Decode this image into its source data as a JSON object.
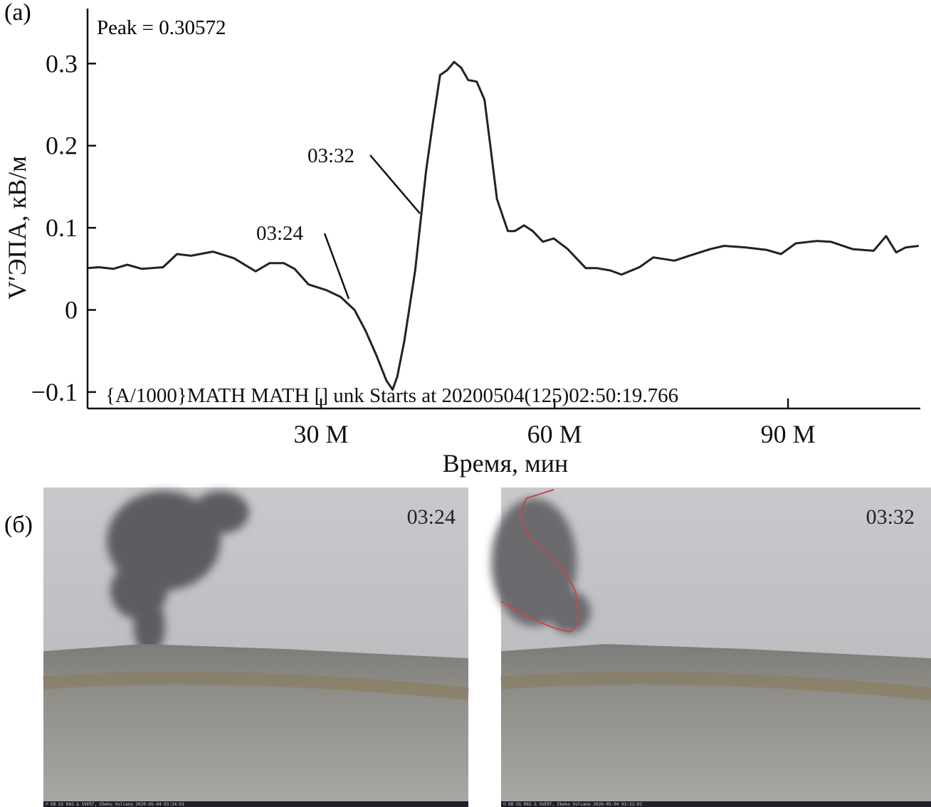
{
  "panel_labels": [
    "(a)",
    "(б)"
  ],
  "chart_data": {
    "type": "line",
    "title": "Peak = 0.30572",
    "x_label": "Время, мин",
    "y_label": "V′ЭПА, кВ/м",
    "annotations": [
      "03:24",
      "03:32",
      "{A/1000}MATH MATH [] unk Starts at 20200504(125)02:50:19.766"
    ],
    "x": [
      0,
      1.5,
      3.3,
      5.1,
      7.0,
      9.7,
      11.5,
      13.3,
      16.1,
      18.8,
      21.6,
      23.4,
      25.2,
      26.6,
      28.4,
      30.7,
      32.5,
      34.3,
      35.7,
      37.1,
      38.4,
      39.2,
      39.8,
      40.7,
      42.1,
      43.5,
      44.4,
      45.3,
      46.2,
      47.1,
      48.0,
      48.9,
      50.0,
      51.0,
      51.7,
      52.6,
      54.0,
      54.9,
      56.1,
      57.2,
      58.5,
      59.9,
      61.7,
      64.0,
      65.4,
      67.2,
      68.6,
      70.9,
      72.7,
      75.4,
      77.3,
      80.0,
      81.8,
      84.6,
      87.3,
      89.1,
      91.0,
      93.7,
      95.5,
      98.3,
      101.0,
      102.6,
      103.9,
      105.1,
      106.8
    ],
    "values": [
      0.051,
      0.052,
      0.05,
      0.055,
      0.05,
      0.052,
      0.068,
      0.066,
      0.071,
      0.063,
      0.047,
      0.057,
      0.057,
      0.05,
      0.031,
      0.024,
      0.016,
      0.0,
      -0.025,
      -0.055,
      -0.086,
      -0.097,
      -0.081,
      -0.038,
      0.048,
      0.17,
      0.23,
      0.286,
      0.292,
      0.302,
      0.295,
      0.28,
      0.278,
      0.256,
      0.204,
      0.135,
      0.096,
      0.096,
      0.103,
      0.096,
      0.083,
      0.087,
      0.074,
      0.051,
      0.051,
      0.048,
      0.043,
      0.052,
      0.064,
      0.06,
      0.066,
      0.074,
      0.078,
      0.076,
      0.073,
      0.068,
      0.081,
      0.084,
      0.083,
      0.074,
      0.072,
      0.09,
      0.07,
      0.076,
      0.078
    ],
    "color": "#222222",
    "xlim": [
      0,
      107
    ],
    "ylim": [
      -0.12,
      0.367
    ],
    "xticks": [
      {
        "value": 30,
        "label": "30 M"
      },
      {
        "value": 60,
        "label": "60 M"
      },
      {
        "value": 90,
        "label": "90 M"
      }
    ],
    "yticks": [
      {
        "value": -0.1,
        "label": "−0.1"
      },
      0,
      0.1,
      0.2,
      0.3
    ],
    "grid": false
  },
  "photos": [
    {
      "time": "03:24",
      "caption": "© KB GS RAS & SVERT, Ebeko Volcano 2020-05-04 03:24:01"
    },
    {
      "time": "03:32",
      "caption": "© KB GS RAS & SVERT, Ebeko Volcano 2020-05-04 03:32:02"
    }
  ]
}
